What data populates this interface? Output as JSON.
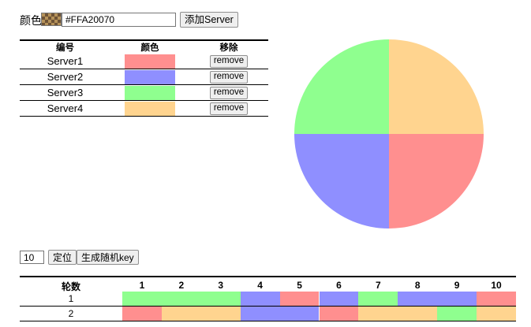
{
  "colors": {
    "red": "#ff8f8f",
    "blue": "#8f8fff",
    "green": "#8fff8f",
    "orange": "#ffd48f"
  },
  "topbar": {
    "color_label": "颜色",
    "color_value": "#FFA20070",
    "add_button": "添加Server"
  },
  "servers": {
    "headers": [
      "编号",
      "颜色",
      "移除"
    ],
    "rows": [
      {
        "id": "Server1",
        "color": "red",
        "remove": "remove"
      },
      {
        "id": "Server2",
        "color": "blue",
        "remove": "remove"
      },
      {
        "id": "Server3",
        "color": "green",
        "remove": "remove"
      },
      {
        "id": "Server4",
        "color": "orange",
        "remove": "remove"
      }
    ]
  },
  "pie": {
    "slices": [
      {
        "color": "orange",
        "fraction": 0.25
      },
      {
        "color": "red",
        "fraction": 0.25
      },
      {
        "color": "blue",
        "fraction": 0.25
      },
      {
        "color": "green",
        "fraction": 0.25
      }
    ]
  },
  "locate": {
    "round_value": "10",
    "locate_button": "定位",
    "random_key_button": "生成随机key"
  },
  "rounds": {
    "header_label": "轮数",
    "columns": [
      "1",
      "2",
      "3",
      "4",
      "5",
      "6",
      "7",
      "8",
      "9",
      "10"
    ],
    "rows": [
      {
        "label": "1",
        "segments": [
          {
            "color": "green",
            "span": 3
          },
          {
            "color": "blue",
            "span": 1
          },
          {
            "color": "red",
            "span": 1
          },
          {
            "color": "blue",
            "span": 1
          },
          {
            "color": "green",
            "span": 1
          },
          {
            "color": "blue",
            "span": 2
          },
          {
            "color": "red",
            "span": 1
          }
        ]
      },
      {
        "label": "2",
        "segments": [
          {
            "color": "red",
            "span": 1
          },
          {
            "color": "orange",
            "span": 2
          },
          {
            "color": "blue",
            "span": 2
          },
          {
            "color": "red",
            "span": 1
          },
          {
            "color": "orange",
            "span": 2
          },
          {
            "color": "green",
            "span": 1
          },
          {
            "color": "orange",
            "span": 1
          }
        ]
      }
    ]
  }
}
